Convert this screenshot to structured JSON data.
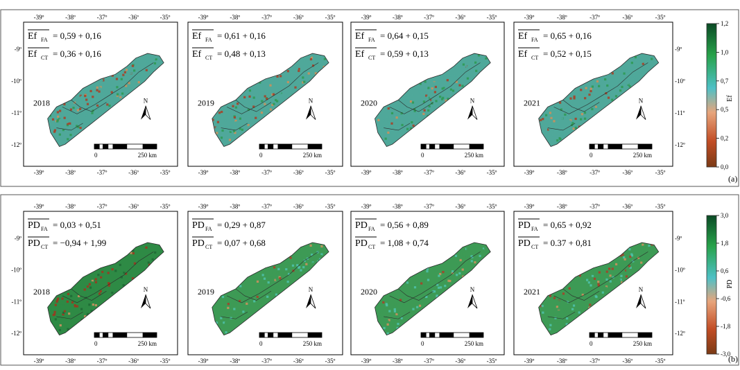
{
  "rows": [
    {
      "id": "a",
      "panel_tag": "(a)",
      "colorbar_title": "Ef",
      "colorbar_ticks": [
        "1,2",
        "1,0",
        "0,7",
        "0,5",
        "0,2",
        "0,0"
      ],
      "colorbar_colors": [
        "#0b4a25",
        "#27a24a",
        "#4ec0c6",
        "#e7a57c",
        "#c24d25",
        "#7a3a15"
      ],
      "panels": [
        {
          "year": "2018",
          "v1": "Ef",
          "s1": "FA",
          "eq1": "= 0,59 + 0,16",
          "v2": "Ef",
          "s2": "CT",
          "eq2": "= 0,36 + 0,16",
          "map_style": "low",
          "top_ticks": [
            "-39º",
            "-38º",
            "-37º",
            "-36º",
            "-35º"
          ],
          "bottom_ticks": [
            "-39º",
            "-38º",
            "-37º",
            "-36º",
            "-35º"
          ],
          "left_ticks": [
            "-9º",
            "-10º",
            "-11º",
            "-12º"
          ]
        },
        {
          "year": "2019",
          "v1": "Ef",
          "s1": "FA",
          "eq1": "= 0,61 + 0,16",
          "v2": "Ef",
          "s2": "CT",
          "eq2": "= 0,48 + 0,13",
          "map_style": "mid",
          "top_ticks": [
            "-39º",
            "-38º",
            "-37º",
            "-36º",
            "-35º"
          ],
          "bottom_ticks": [
            "-39º",
            "-38º",
            "-37º",
            "-36º",
            "-35º"
          ]
        },
        {
          "year": "2020",
          "v1": "Ef",
          "s1": "FA",
          "eq1": "= 0,64 + 0,15",
          "v2": "Ef",
          "s2": "CT",
          "eq2": "= 0,59 + 0,13",
          "map_style": "high",
          "top_ticks": [
            "-39º",
            "-38º",
            "-37º",
            "-36º",
            "-35º"
          ],
          "bottom_ticks": [
            "-39º",
            "-38º",
            "-37º",
            "-36º",
            "-35º"
          ]
        },
        {
          "year": "2021",
          "v1": "Ef",
          "s1": "FA",
          "eq1": "= 0,65 + 0,16",
          "v2": "Ef",
          "s2": "CT",
          "eq2": "= 0,52 + 0,15",
          "map_style": "mid",
          "top_ticks": [
            "-39º",
            "-38º",
            "-37º",
            "-36º",
            "-35º"
          ],
          "bottom_ticks": [
            "-39º",
            "-38º",
            "-37º",
            "-36º",
            "-35º"
          ],
          "right_ticks": [
            "-9º",
            "-10º",
            "-11º",
            "-12º"
          ]
        }
      ]
    },
    {
      "id": "b",
      "panel_tag": "(b)",
      "colorbar_title": "PD",
      "colorbar_ticks": [
        "3,0",
        "1,8",
        "0,6",
        "-0,6",
        "-1,8",
        "-3,0"
      ],
      "colorbar_colors": [
        "#0b4a25",
        "#27a24a",
        "#4ec0c6",
        "#e7a57c",
        "#c24d25",
        "#7a3a15"
      ],
      "panels": [
        {
          "year": "2018",
          "v1": "PD",
          "s1": "FA",
          "eq1": "= 0,03 + 0,51",
          "v2": "PD",
          "s2": "CT",
          "eq2": "= −0,94 + 1,99",
          "map_style": "pd_low",
          "top_ticks": [
            "-39º",
            "-38º",
            "-37º",
            "-36º",
            "-35º"
          ],
          "bottom_ticks": [
            "-39º",
            "-38º",
            "-37º",
            "-36º",
            "-35º"
          ],
          "left_ticks": [
            "-9º",
            "-10º",
            "-11º",
            "-12º"
          ]
        },
        {
          "year": "2019",
          "v1": "PD",
          "s1": "FA",
          "eq1": "= 0,29 + 0,87",
          "v2": "PD",
          "s2": "CT",
          "eq2": "= 0,07 + 0,68",
          "map_style": "pd_green",
          "top_ticks": [
            "-39º",
            "-38º",
            "-37º",
            "-36º",
            "-35º"
          ],
          "bottom_ticks": [
            "-39º",
            "-38º",
            "-37º",
            "-36º",
            "-35º"
          ]
        },
        {
          "year": "2020",
          "v1": "PD",
          "s1": "FA",
          "eq1": "= 0,56 + 0,89",
          "v2": "PD",
          "s2": "CT",
          "eq2": "= 1,08 + 0,74",
          "map_style": "pd_green",
          "top_ticks": [
            "-39º",
            "-38º",
            "-37º",
            "-36º",
            "-35º"
          ],
          "bottom_ticks": [
            "-39º",
            "-38º",
            "-37º",
            "-36º",
            "-35º"
          ]
        },
        {
          "year": "2021",
          "v1": "PD",
          "s1": "FA",
          "eq1": "= 0,65 + 0,92",
          "v2": "PD",
          "s2": "CT",
          "eq2": "= 0.37 + 0,81",
          "map_style": "pd_mid",
          "top_ticks": [
            "-39º",
            "-38º",
            "-37º",
            "-36º",
            "-35º"
          ],
          "bottom_ticks": [
            "-39º",
            "-38º",
            "-37º",
            "-36º",
            "-35º"
          ],
          "right_ticks": [
            "-9º",
            "-10º",
            "-11º",
            "-12º"
          ]
        }
      ]
    }
  ],
  "scale_bar": {
    "start_label": "0",
    "end_label": "250 km"
  },
  "north_label": "N"
}
